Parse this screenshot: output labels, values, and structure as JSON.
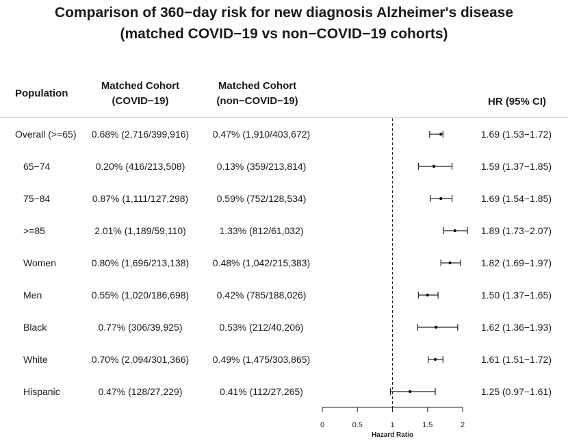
{
  "title_line1": "Comparison of 360−day risk for new diagnosis Alzheimer's disease",
  "title_line2": "(matched COVID−19 vs non−COVID−19 cohorts)",
  "headers": {
    "population": "Population",
    "covid_line1": "Matched Cohort",
    "covid_line2": "(COVID−19)",
    "noncovid_line1": "Matched Cohort",
    "noncovid_line2": "(non−COVID−19)",
    "hr": "HR (95% CI)"
  },
  "rows": [
    {
      "population": "Overall (>=65)",
      "covid": "0.68% (2,716/399,916)",
      "noncovid": "0.47% (1,910/403,672)",
      "hr_text": "1.69 (1.53−1.72)"
    },
    {
      "population": "65−74",
      "covid": "0.20% (416/213,508)",
      "noncovid": "0.13% (359/213,814)",
      "hr_text": "1.59 (1.37−1.85)"
    },
    {
      "population": "75−84",
      "covid": "0.87% (1,111/127,298)",
      "noncovid": "0.59% (752/128,534)",
      "hr_text": "1.69 (1.54−1.85)"
    },
    {
      "population": ">=85",
      "covid": "2.01% (1,189/59,110)",
      "noncovid": "1.33% (812/61,032)",
      "hr_text": "1.89 (1.73−2.07)"
    },
    {
      "population": "Women",
      "covid": "0.80% (1,696/213,138)",
      "noncovid": "0.48% (1,042/215,383)",
      "hr_text": "1.82 (1.69−1.97)"
    },
    {
      "population": "Men",
      "covid": "0.55% (1,020/186,698)",
      "noncovid": "0.42% (785/188,026)",
      "hr_text": "1.50 (1.37−1.65)"
    },
    {
      "population": "Black",
      "covid": "0.77% (306/39,925)",
      "noncovid": "0.53% (212/40,206)",
      "hr_text": "1.62 (1.36−1.93)"
    },
    {
      "population": "White",
      "covid": "0.70% (2,094/301,366)",
      "noncovid": "0.49% (1,475/303,865)",
      "hr_text": "1.61 (1.51−1.72)"
    },
    {
      "population": "Hispanic",
      "covid": "0.47% (128/27,229)",
      "noncovid": "0.41% (112/27,265)",
      "hr_text": "1.25 (0.97−1.61)"
    }
  ],
  "chart_data": {
    "type": "forest",
    "xlabel": "Hazard Ratio",
    "xlim": [
      0,
      2
    ],
    "xticks": [
      0,
      0.5,
      1,
      1.5,
      2
    ],
    "xtick_labels": [
      "0",
      "0.5",
      "1",
      "1.5",
      "2"
    ],
    "reference_line": 1,
    "categories": [
      "Overall (>=65)",
      "65−74",
      "75−84",
      ">=85",
      "Women",
      "Men",
      "Black",
      "White",
      "Hispanic"
    ],
    "hr": [
      1.69,
      1.59,
      1.69,
      1.89,
      1.82,
      1.5,
      1.62,
      1.61,
      1.25
    ],
    "ci_low": [
      1.53,
      1.37,
      1.54,
      1.73,
      1.69,
      1.37,
      1.36,
      1.51,
      0.97
    ],
    "ci_high": [
      1.72,
      1.85,
      1.85,
      2.07,
      1.97,
      1.65,
      1.93,
      1.72,
      1.61
    ]
  }
}
